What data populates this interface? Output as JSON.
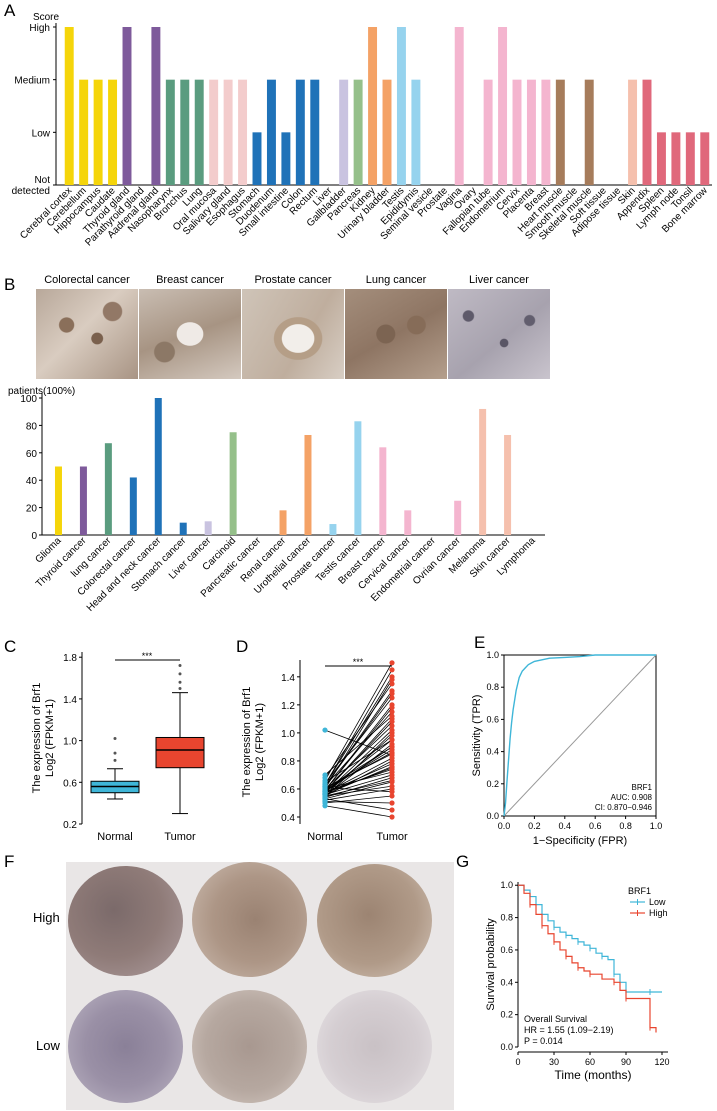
{
  "panels": {
    "A": "A",
    "B": "B",
    "C": "C",
    "D": "D",
    "E": "E",
    "F": "F",
    "G": "G"
  },
  "chart_data": [
    {
      "id": "A",
      "type": "bar",
      "ylabel": "Score",
      "ytick_labels": [
        "Not detected",
        "Low",
        "Medium",
        "High"
      ],
      "categories": [
        "Cerebral cortex",
        "Cerebellum",
        "Hippocampus",
        "Caudate",
        "Thyroid gland",
        "Parathyroid gland",
        "Aadrenal gland",
        "Nasopharynx",
        "Bronchus",
        "Lung",
        "Oral mucosa",
        "Salivary gland",
        "Esophagus",
        "Stomach",
        "Duodenum",
        "Small intestine",
        "Colon",
        "Rectum",
        "Liver",
        "Gallbladder",
        "Pancreas",
        "Kidney",
        "Urinary bladder",
        "Testis",
        "Epididymis",
        "Seminal vesicle",
        "Prostate",
        "Vagina",
        "Ovary",
        "Fallopian tube",
        "Endometrium",
        "Cervix",
        "Placenta",
        "Breast",
        "Heart muscle",
        "Smooth muscle",
        "Skeletal muscle",
        "Soft tissue",
        "Adipose tissue",
        "Skin",
        "Appendix",
        "Spleen",
        "Lymph node",
        "Tonsil",
        "Bone marrow"
      ],
      "values": [
        3,
        2,
        2,
        2,
        3,
        0,
        3,
        2,
        2,
        2,
        2,
        2,
        2,
        1,
        2,
        1,
        2,
        2,
        0,
        2,
        2,
        3,
        2,
        3,
        2,
        0,
        0,
        3,
        0,
        2,
        3,
        2,
        2,
        2,
        2,
        0,
        2,
        0,
        0,
        2,
        2,
        1,
        1,
        1,
        1
      ],
      "colors": [
        "#f5d50a",
        "#f5d50a",
        "#f5d50a",
        "#f5d50a",
        "#7e5a9b",
        "#7e5a9b",
        "#7e5a9b",
        "#5a9c7f",
        "#5a9c7f",
        "#5a9c7f",
        "#f3cccc",
        "#f3cccc",
        "#f3cccc",
        "#1f72b8",
        "#1f72b8",
        "#1f72b8",
        "#1f72b8",
        "#1f72b8",
        "#c9c3e0",
        "#c9c3e0",
        "#95c08a",
        "#f4a266",
        "#f4a266",
        "#96d3ee",
        "#96d3ee",
        "#96d3ee",
        "#f4b5cf",
        "#f4b5cf",
        "#f4b5cf",
        "#f4b5cf",
        "#f4b5cf",
        "#f4b5cf",
        "#f4b5cf",
        "#f4b5cf",
        "#a67c5b",
        "#a67c5b",
        "#a67c5b",
        "#f5c0ad",
        "#f5c0ad",
        "#f5c0ad",
        "#e0687b",
        "#e0687b",
        "#e0687b",
        "#e0687b",
        "#e0687b"
      ],
      "ylim": [
        0,
        3
      ]
    },
    {
      "id": "B",
      "type": "bar",
      "ylabel": "patients(100%)",
      "yticks": [
        0,
        20,
        40,
        60,
        80,
        100
      ],
      "categories": [
        "Glioma",
        "Thyroid cancer",
        "lung cancer",
        "Colorectal cancer",
        "Head and neck cancer",
        "Stomach cancer",
        "Liver cancer",
        "Carcinoid",
        "Pancreatic cancer",
        "Renal cancer",
        "Urothelial cancer",
        "Prostate cancer",
        "Testis cancer",
        "Breast cancer",
        "Cervical cancer",
        "Endometrial cancer",
        "Ovrian cancer",
        "Melanoma",
        "Skin cancer",
        "Lymphoma"
      ],
      "values": [
        50,
        50,
        67,
        42,
        100,
        9,
        10,
        75,
        0,
        18,
        73,
        8,
        83,
        64,
        18,
        0,
        25,
        92,
        73,
        0
      ],
      "colors": [
        "#f5d50a",
        "#7e5a9b",
        "#5a9c7f",
        "#1f72b8",
        "#1f72b8",
        "#1f72b8",
        "#c9c3e0",
        "#95c08a",
        "#95c08a",
        "#f4a266",
        "#f4a266",
        "#96d3ee",
        "#96d3ee",
        "#f4b5cf",
        "#f4b5cf",
        "#f4b5cf",
        "#f4b5cf",
        "#f5c0ad",
        "#f5c0ad",
        "#f5c0ad"
      ],
      "ylim": [
        0,
        100
      ]
    },
    {
      "id": "C",
      "type": "box",
      "ylabel": "The expression of Brf1",
      "ylabel2": "Log2 (FPKM+1)",
      "categories": [
        "Normal",
        "Tumor"
      ],
      "yticks": [
        0.2,
        0.6,
        1.0,
        1.4,
        1.8
      ],
      "ylim": [
        0.2,
        1.85
      ],
      "boxes": [
        {
          "name": "Normal",
          "whisker_low": 0.44,
          "q1": 0.5,
          "median": 0.56,
          "q3": 0.61,
          "whisker_high": 0.73,
          "outliers": [
            1.02,
            0.88,
            0.81
          ],
          "color": "#3fb6d8"
        },
        {
          "name": "Tumor",
          "whisker_low": 0.3,
          "q1": 0.74,
          "median": 0.91,
          "q3": 1.03,
          "whisker_high": 1.46,
          "outliers": [
            1.5,
            1.56,
            1.64,
            1.72
          ],
          "color": "#e8452f"
        }
      ],
      "significance": "***"
    },
    {
      "id": "D",
      "type": "paired-scatter",
      "ylabel": "The expression of Brf1",
      "ylabel2": "Log2 (FPKM+1)",
      "categories": [
        "Normal",
        "Tumor"
      ],
      "yticks": [
        0.4,
        0.6,
        0.8,
        1.0,
        1.2,
        1.4
      ],
      "ylim": [
        0.35,
        1.52
      ],
      "normal": [
        0.55,
        0.58,
        0.6,
        0.52,
        0.62,
        0.57,
        0.65,
        0.5,
        0.54,
        0.59,
        0.61,
        0.63,
        0.56,
        0.53,
        0.66,
        0.58,
        0.6,
        0.57,
        0.55,
        0.62,
        0.64,
        0.59,
        0.51,
        0.56,
        0.68,
        0.6,
        0.54,
        0.58,
        0.57,
        0.63,
        0.55,
        0.61,
        0.59,
        0.53,
        0.6,
        0.57,
        0.56,
        0.62,
        0.58,
        0.55,
        0.7,
        1.02,
        0.48,
        0.58,
        0.6
      ],
      "tumor": [
        0.8,
        1.1,
        0.9,
        0.6,
        1.3,
        0.75,
        0.95,
        0.55,
        1.0,
        1.2,
        0.85,
        1.4,
        0.7,
        0.65,
        1.5,
        0.9,
        1.05,
        0.78,
        0.62,
        1.15,
        1.25,
        0.88,
        0.5,
        0.98,
        1.35,
        0.72,
        0.68,
        1.08,
        0.82,
        1.45,
        0.92,
        0.58,
        1.18,
        0.45,
        0.86,
        1.02,
        0.76,
        1.28,
        0.95,
        0.66,
        1.12,
        0.84,
        0.4,
        0.74,
        1.38
      ],
      "normal_color": "#3fb6d8",
      "tumor_color": "#e8452f",
      "significance": "***"
    },
    {
      "id": "E",
      "type": "line",
      "xlabel": "1−Specificity (FPR)",
      "ylabel": "Sensitivity (TPR)",
      "xticks": [
        0.0,
        0.2,
        0.4,
        0.6,
        0.8,
        1.0
      ],
      "yticks": [
        0.0,
        0.2,
        0.4,
        0.6,
        0.8,
        1.0
      ],
      "xlim": [
        0,
        1
      ],
      "ylim": [
        0,
        1
      ],
      "roc_x": [
        0,
        0.01,
        0.02,
        0.03,
        0.04,
        0.05,
        0.06,
        0.07,
        0.08,
        0.09,
        0.1,
        0.12,
        0.14,
        0.16,
        0.18,
        0.2,
        0.25,
        0.3,
        0.4,
        0.5,
        0.6,
        0.8,
        1.0
      ],
      "roc_y": [
        0,
        0.08,
        0.22,
        0.35,
        0.48,
        0.58,
        0.66,
        0.72,
        0.78,
        0.82,
        0.86,
        0.9,
        0.92,
        0.94,
        0.95,
        0.96,
        0.97,
        0.98,
        0.985,
        0.99,
        1.0,
        1.0,
        1.0
      ],
      "roc_color": "#3fb6d8",
      "annotation": [
        "BRF1",
        "AUC: 0.908",
        "CI: 0.870−0.946"
      ]
    },
    {
      "id": "G",
      "type": "line",
      "xlabel": "Time (months)",
      "ylabel": "Survival probability",
      "xticks": [
        0,
        30,
        60,
        90,
        120
      ],
      "yticks": [
        0.0,
        0.2,
        0.4,
        0.6,
        0.8,
        1.0
      ],
      "xlim": [
        0,
        125
      ],
      "ylim": [
        0,
        1.02
      ],
      "legend_title": "BRF1",
      "series": [
        {
          "name": "Low",
          "color": "#3fb6d8",
          "x": [
            0,
            5,
            10,
            15,
            20,
            25,
            30,
            35,
            40,
            45,
            50,
            55,
            60,
            65,
            70,
            75,
            80,
            85,
            90,
            100,
            110,
            120
          ],
          "y": [
            1.0,
            0.97,
            0.93,
            0.88,
            0.82,
            0.78,
            0.74,
            0.71,
            0.69,
            0.67,
            0.65,
            0.63,
            0.61,
            0.58,
            0.56,
            0.54,
            0.45,
            0.4,
            0.34,
            0.34,
            0.34,
            0.34
          ]
        },
        {
          "name": "High",
          "color": "#e8452f",
          "x": [
            0,
            5,
            10,
            15,
            20,
            25,
            30,
            35,
            40,
            45,
            50,
            55,
            60,
            70,
            80,
            85,
            90,
            100,
            110,
            115
          ],
          "y": [
            1.0,
            0.95,
            0.88,
            0.82,
            0.75,
            0.7,
            0.65,
            0.6,
            0.56,
            0.52,
            0.49,
            0.47,
            0.45,
            0.42,
            0.4,
            0.35,
            0.3,
            0.3,
            0.12,
            0.09
          ]
        }
      ],
      "annotation": [
        "Overall Survival",
        "HR = 1.55 (1.09−2.19)",
        "P = 0.014"
      ]
    }
  ],
  "ihc_titles": [
    "Colorectal cancer",
    "Breast cancer",
    "Prostate cancer",
    "Lung cancer",
    "Liver cancer"
  ],
  "f_labels": {
    "high": "High",
    "low": "Low"
  }
}
